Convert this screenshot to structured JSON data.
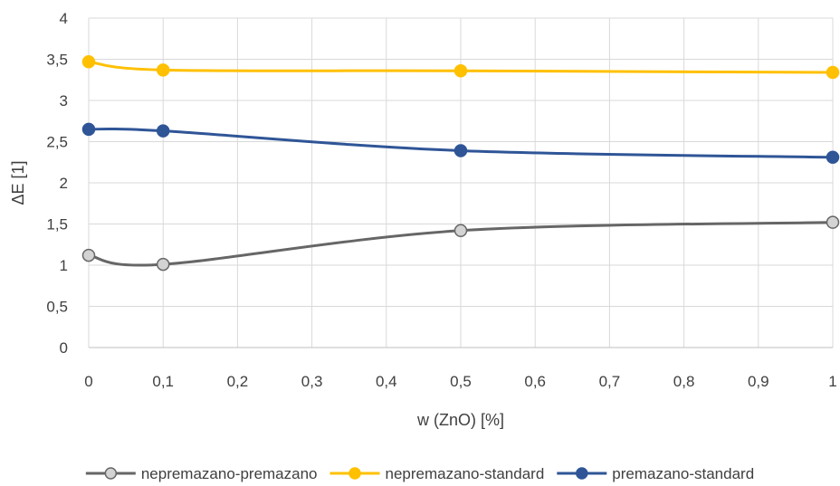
{
  "chart_data": {
    "type": "line",
    "xlabel": "w (ZnO) [%]",
    "ylabel": "ΔE [1]",
    "xlim": [
      0,
      1
    ],
    "ylim": [
      0,
      4
    ],
    "x_ticks": [
      0,
      0.1,
      0.2,
      0.3,
      0.4,
      0.5,
      0.6,
      0.7,
      0.8,
      0.9,
      1
    ],
    "x_tick_labels": [
      "0",
      "0,1",
      "0,2",
      "0,3",
      "0,4",
      "0,5",
      "0,6",
      "0,7",
      "0,8",
      "0,9",
      "1"
    ],
    "y_ticks": [
      0,
      0.5,
      1,
      1.5,
      2,
      2.5,
      3,
      3.5,
      4
    ],
    "y_tick_labels": [
      "0",
      "0,5",
      "1",
      "1,5",
      "2",
      "2,5",
      "3",
      "3,5",
      "4"
    ],
    "grid": true,
    "smoothed": true,
    "legend_position": "bottom",
    "x": [
      0,
      0.1,
      0.5,
      1
    ],
    "series": [
      {
        "name": "nepremazano-premazano",
        "color": "#666666",
        "marker_fill": "#d3d3d3",
        "values": [
          1.12,
          1.01,
          1.42,
          1.52
        ]
      },
      {
        "name": "nepremazano-standard",
        "color": "#ffc000",
        "marker_fill": "#ffc000",
        "values": [
          3.47,
          3.37,
          3.36,
          3.34
        ]
      },
      {
        "name": "premazano-standard",
        "color": "#2f5597",
        "marker_fill": "#2f5597",
        "values": [
          2.65,
          2.63,
          2.39,
          2.31
        ]
      }
    ]
  }
}
